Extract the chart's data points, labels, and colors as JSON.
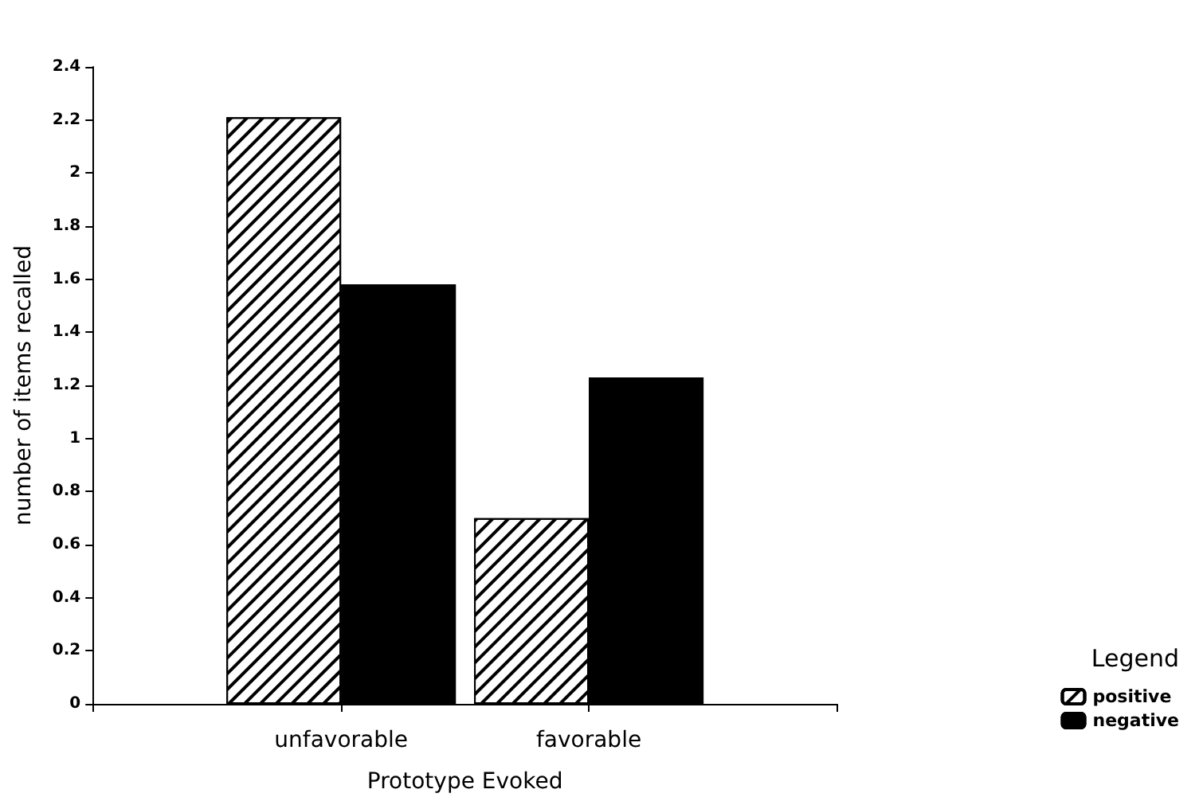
{
  "chart_data": {
    "type": "bar",
    "xlabel": "Prototype Evoked",
    "ylabel": "number of items recalled",
    "legend_title": "Legend",
    "categories": [
      "unfavorable",
      "favorable"
    ],
    "series": [
      {
        "name": "positive",
        "color": "#ffffff",
        "values": [
          2.21,
          0.7
        ]
      },
      {
        "name": "negative",
        "color": "#000000",
        "values": [
          1.58,
          1.23
        ]
      }
    ],
    "ylim": [
      0,
      2.4
    ],
    "yticks": [
      0,
      0.2,
      0.4,
      0.6,
      0.8,
      1,
      1.2,
      1.4,
      1.6,
      1.8,
      2,
      2.2,
      2.4
    ],
    "grid": false,
    "legend": "bottom right"
  }
}
